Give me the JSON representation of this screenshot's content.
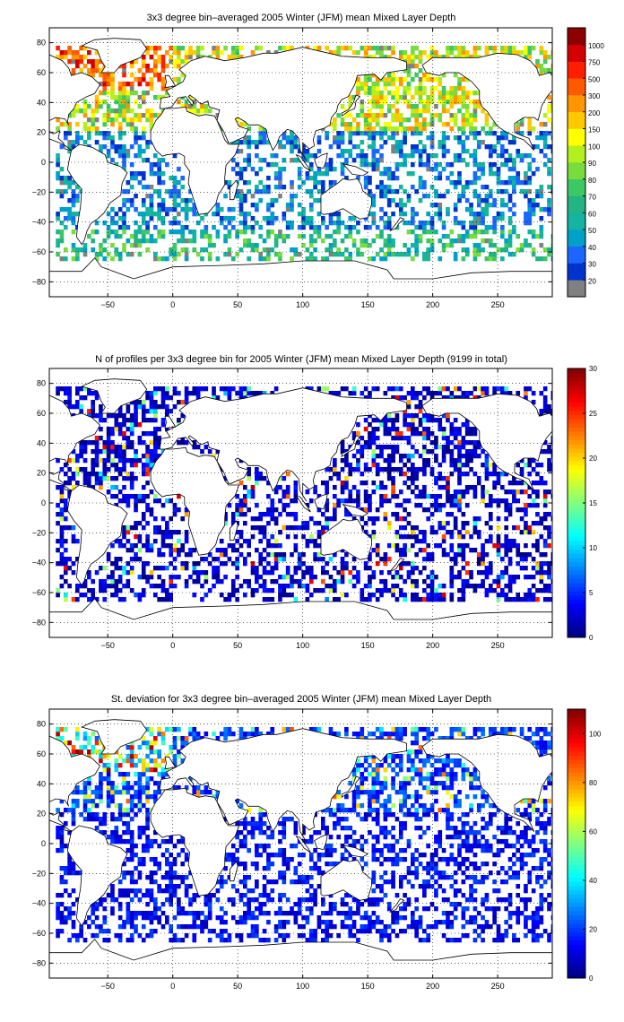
{
  "chart_data": [
    {
      "type": "heatmap",
      "title": "3x3 degree bin–averaged 2005 Winter (JFM) mean Mixed Layer Depth",
      "xlim": [
        -95,
        292
      ],
      "ylim": [
        -90,
        90
      ],
      "xticks": [
        -50,
        0,
        50,
        100,
        150,
        200,
        250
      ],
      "yticks": [
        -80,
        -60,
        -40,
        -20,
        0,
        20,
        40,
        60,
        80
      ],
      "grid": true,
      "colorbar": {
        "scale": "categorical",
        "labels": [
          "20",
          "30",
          "40",
          "50",
          "60",
          "70",
          "80",
          "90",
          "100",
          "150",
          "200",
          "300",
          "500",
          "750",
          "1000"
        ],
        "colors": [
          "#808080",
          "#0033cc",
          "#1a66ff",
          "#00a0c8",
          "#14b4a0",
          "#22b482",
          "#3cc864",
          "#78dc3c",
          "#b4f01e",
          "#ffff00",
          "#ffc800",
          "#ff9600",
          "#ff5a00",
          "#ff1e00",
          "#d20000",
          "#8c0000"
        ]
      }
    },
    {
      "type": "heatmap",
      "title": "N of profiles per 3x3 degree bin for 2005 Winter (JFM) mean Mixed Layer Depth  (9199 in total)",
      "xlim": [
        -95,
        292
      ],
      "ylim": [
        -90,
        90
      ],
      "xticks": [
        -50,
        0,
        50,
        100,
        150,
        200,
        250
      ],
      "yticks": [
        -80,
        -60,
        -40,
        -20,
        0,
        20,
        40,
        60,
        80
      ],
      "grid": true,
      "colorbar": {
        "scale": "linear",
        "min": 0,
        "max": 30,
        "ticks": [
          "0",
          "5",
          "10",
          "15",
          "20",
          "25",
          "30"
        ],
        "colormap": "jet"
      }
    },
    {
      "type": "heatmap",
      "title": "St. deviation for 3x3 degree bin–averaged 2005 Winter (JFM) mean Mixed Layer Depth",
      "xlim": [
        -95,
        292
      ],
      "ylim": [
        -90,
        90
      ],
      "xticks": [
        -50,
        0,
        50,
        100,
        150,
        200,
        250
      ],
      "yticks": [
        -80,
        -60,
        -40,
        -20,
        0,
        20,
        40,
        60,
        80
      ],
      "grid": true,
      "colorbar": {
        "scale": "linear",
        "min": 0,
        "max": 110,
        "ticks": [
          "0",
          "20",
          "40",
          "60",
          "80",
          "100"
        ],
        "colormap": "jet"
      }
    }
  ]
}
